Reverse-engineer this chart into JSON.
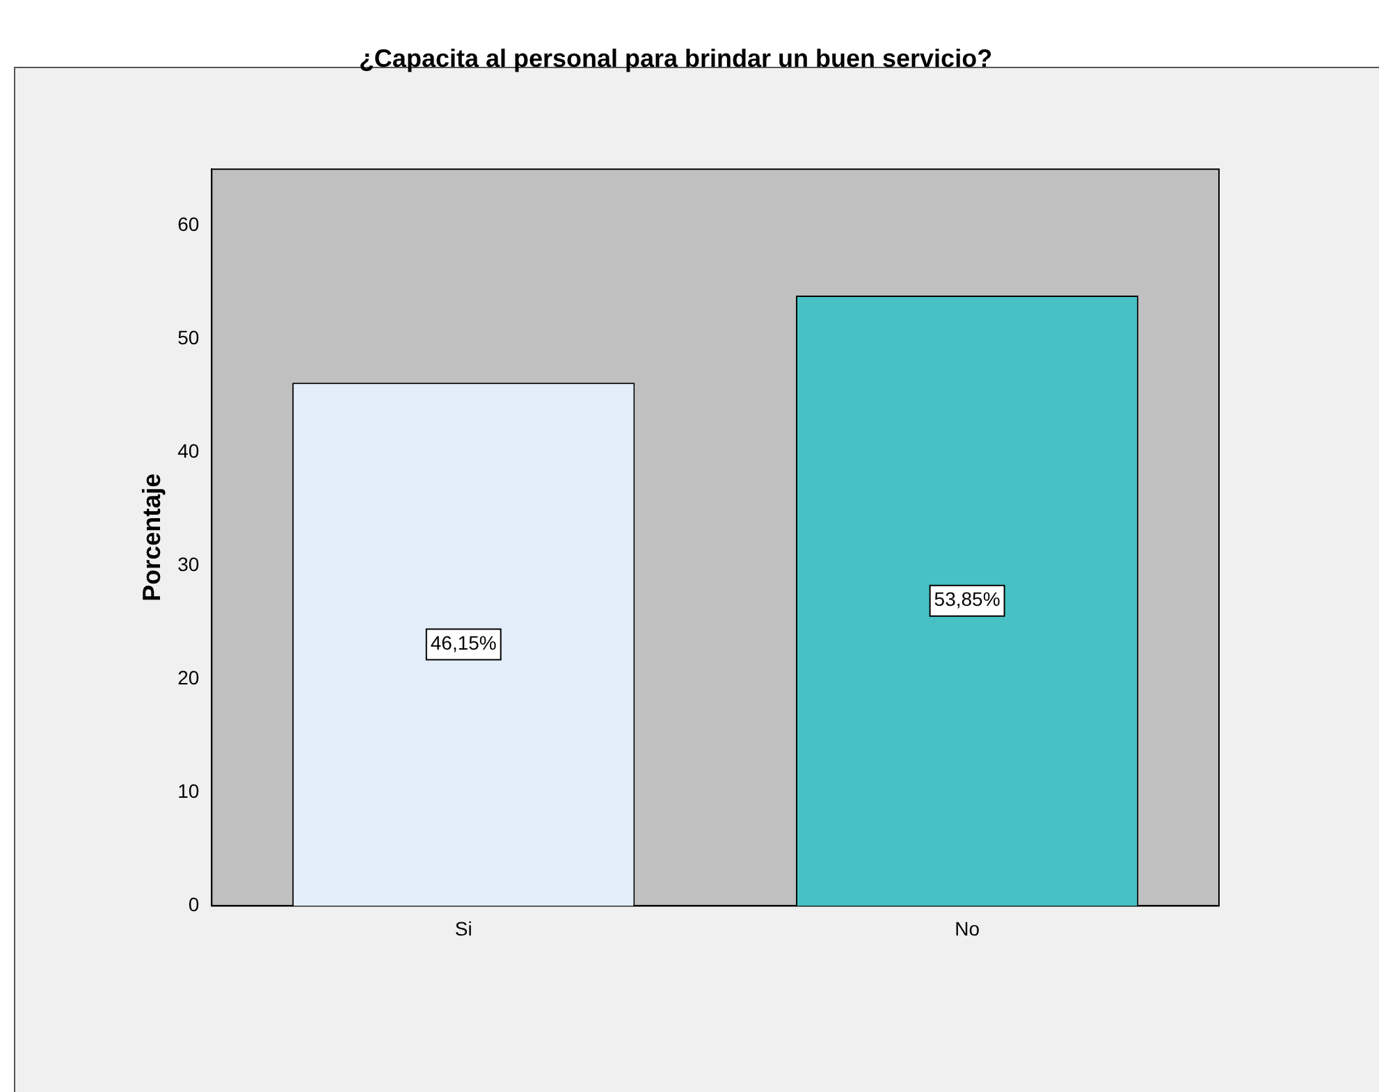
{
  "chart_data": {
    "type": "bar",
    "title": "¿Capacita al personal para brindar un buen servicio?",
    "ylabel": "Porcentaje",
    "categories": [
      "Si",
      "No"
    ],
    "values": [
      46.15,
      53.85
    ],
    "colors": [
      "#e3eefa",
      "#48c1c4"
    ],
    "value_labels": [
      "46,15%",
      "53,85%"
    ],
    "ylim": [
      0,
      65
    ],
    "yticks": [
      0,
      10,
      20,
      30,
      40,
      50,
      60
    ],
    "grid": false,
    "legend": false
  }
}
